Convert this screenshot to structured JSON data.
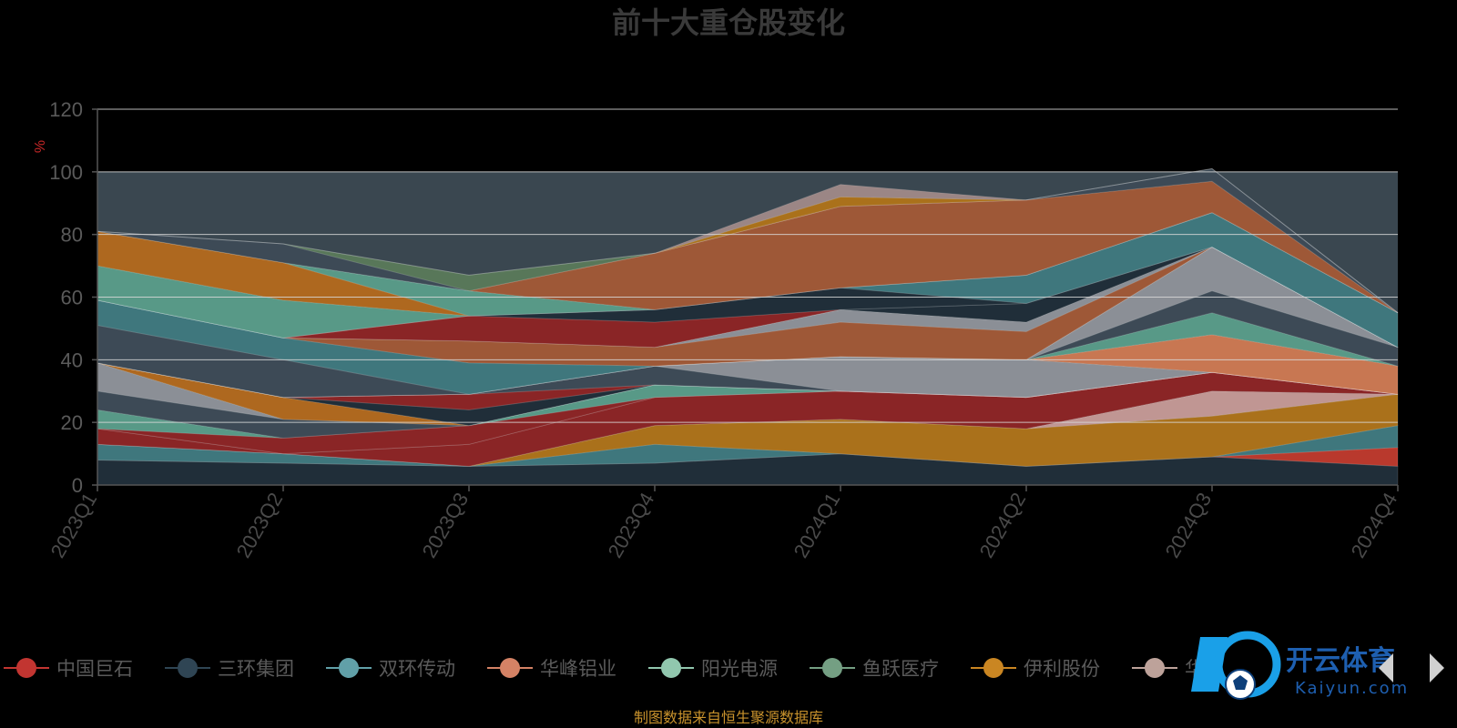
{
  "chart_data": {
    "type": "area",
    "stacked": true,
    "title": "前十大重仓股变化",
    "ylabel": "%",
    "ylim": [
      0,
      120
    ],
    "yticks": [
      "0",
      "20",
      "40",
      "60",
      "80",
      "100",
      "120"
    ],
    "categories": [
      "2023Q1",
      "2023Q2",
      "2023Q3",
      "2023Q4",
      "2024Q1",
      "2024Q2",
      "2024Q3",
      "2024Q4"
    ],
    "grid": true,
    "legend_position": "bottom",
    "series": [
      {
        "name": "",
        "color": "#1f2d38",
        "values": [
          8,
          7,
          6,
          7,
          10,
          6,
          9,
          6
        ]
      },
      {
        "name": "",
        "color": "#c0392b",
        "values": [
          0,
          0,
          0,
          0,
          0,
          0,
          0,
          6
        ]
      },
      {
        "name": "",
        "color": "#3f7a80",
        "values": [
          5,
          3,
          0,
          6,
          0,
          0,
          0,
          7
        ]
      },
      {
        "name": "",
        "color": "#b07418",
        "values": [
          0,
          0,
          0,
          6,
          11,
          12,
          13,
          10
        ]
      },
      {
        "name": "",
        "color": "#c79b97",
        "values": [
          0,
          0,
          0,
          0,
          0,
          0,
          8,
          0
        ]
      },
      {
        "name": "",
        "color": "#8e2424",
        "values": [
          5,
          0,
          7,
          9,
          9,
          10,
          6,
          0
        ]
      },
      {
        "name": "",
        "color": "#2f3b45",
        "values": [
          0,
          0,
          0,
          0,
          0,
          0,
          0,
          0
        ]
      },
      {
        "name": "",
        "color": "#8e2424",
        "values": [
          0,
          5,
          6,
          0,
          0,
          0,
          0,
          0
        ]
      },
      {
        "name": "",
        "color": "#5a9e8a",
        "values": [
          6,
          0,
          0,
          4,
          0,
          0,
          0,
          0
        ]
      },
      {
        "name": "",
        "color": "#3d4b56",
        "values": [
          6,
          6,
          0,
          0,
          0,
          0,
          0,
          0
        ]
      },
      {
        "name": "",
        "color": "#8f939a",
        "values": [
          9,
          0,
          0,
          0,
          0,
          0,
          0,
          0
        ]
      },
      {
        "name": "",
        "color": "#b46a1c",
        "values": [
          0,
          7,
          0,
          0,
          0,
          0,
          0,
          0
        ]
      },
      {
        "name": "",
        "color": "#1f2d38",
        "values": [
          0,
          0,
          5,
          0,
          0,
          0,
          0,
          0
        ]
      },
      {
        "name": "",
        "color": "#8e2424",
        "values": [
          0,
          0,
          5,
          0,
          0,
          0,
          0,
          0
        ]
      },
      {
        "name": "",
        "color": "#3d4b56",
        "values": [
          0,
          0,
          0,
          6,
          0,
          0,
          0,
          0
        ]
      },
      {
        "name": "",
        "color": "#8f939a",
        "values": [
          0,
          0,
          0,
          0,
          11,
          12,
          0,
          0
        ]
      },
      {
        "name": "",
        "color": "#d07a52",
        "values": [
          0,
          0,
          0,
          0,
          0,
          0,
          12,
          9
        ]
      },
      {
        "name": "",
        "color": "#5a9e8a",
        "values": [
          0,
          0,
          0,
          0,
          0,
          0,
          7,
          0
        ]
      },
      {
        "name": "",
        "color": "#3d4b56",
        "values": [
          0,
          0,
          0,
          0,
          0,
          0,
          7,
          6
        ]
      },
      {
        "name": "",
        "color": "#8f939a",
        "values": [
          0,
          0,
          0,
          0,
          0,
          0,
          14,
          0
        ]
      },
      {
        "name": "",
        "color": "#3d4b56",
        "values": [
          12,
          12,
          0,
          0,
          0,
          0,
          0,
          0
        ]
      },
      {
        "name": "",
        "color": "#3f7a80",
        "values": [
          8,
          7,
          10,
          0,
          0,
          0,
          0,
          0
        ]
      },
      {
        "name": "",
        "color": "#a35a36",
        "values": [
          0,
          0,
          7,
          6,
          11,
          9,
          0,
          0
        ]
      },
      {
        "name": "",
        "color": "#8f939a",
        "values": [
          0,
          0,
          0,
          0,
          4,
          3,
          0,
          0
        ]
      },
      {
        "name": "",
        "color": "#1f2d38",
        "values": [
          0,
          0,
          0,
          0,
          0,
          6,
          0,
          0
        ]
      },
      {
        "name": "",
        "color": "#8e2424",
        "values": [
          0,
          0,
          8,
          8,
          0,
          0,
          0,
          0
        ]
      },
      {
        "name": "",
        "color": "#1f2d38",
        "values": [
          0,
          0,
          0,
          4,
          7,
          0,
          0,
          0
        ]
      },
      {
        "name": "",
        "color": "#3f7a80",
        "values": [
          0,
          0,
          0,
          0,
          0,
          9,
          11,
          11
        ]
      },
      {
        "name": "",
        "color": "#5a9e8a",
        "values": [
          11,
          12,
          0,
          0,
          0,
          0,
          0,
          0
        ]
      },
      {
        "name": "",
        "color": "#b46a1c",
        "values": [
          11,
          12,
          0,
          0,
          0,
          0,
          0,
          0
        ]
      },
      {
        "name": "",
        "color": "#5a9e8a",
        "values": [
          0,
          0,
          8,
          0,
          0,
          0,
          0,
          0
        ]
      },
      {
        "name": "",
        "color": "#a35a36",
        "values": [
          0,
          0,
          0,
          18,
          26,
          24,
          10,
          0
        ]
      },
      {
        "name": "",
        "color": "#3d4b56",
        "values": [
          0,
          6,
          0,
          0,
          0,
          0,
          4,
          0
        ]
      },
      {
        "name": "",
        "color": "#5a7a5a",
        "values": [
          0,
          0,
          5,
          0,
          0,
          0,
          0,
          0
        ]
      },
      {
        "name": "",
        "color": "#b07418",
        "values": [
          0,
          0,
          0,
          0,
          3,
          0,
          0,
          0
        ]
      },
      {
        "name": "",
        "color": "#a08a88",
        "values": [
          0,
          0,
          0,
          0,
          4,
          0,
          0,
          0
        ]
      }
    ],
    "legend": [
      {
        "name": "中国巨石",
        "color": "#c23531"
      },
      {
        "name": "三环集团",
        "color": "#2f4554"
      },
      {
        "name": "双环传动",
        "color": "#61a0a8"
      },
      {
        "name": "华峰铝业",
        "color": "#d48265"
      },
      {
        "name": "阳光电源",
        "color": "#91c7ae"
      },
      {
        "name": "鱼跃医疗",
        "color": "#749f83"
      },
      {
        "name": "伊利股份",
        "color": "#ca8622"
      },
      {
        "name": "华",
        "color": "#bda29a"
      }
    ],
    "source": "制图数据来自恒生聚源数据库"
  },
  "watermark": {
    "brand": "开云体育",
    "sub": "Kaiyun.com",
    "icon": "kaiyun-logo-icon"
  }
}
